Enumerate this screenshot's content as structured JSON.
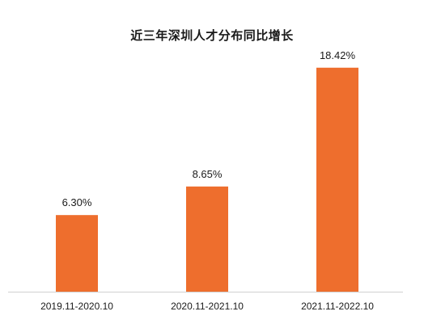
{
  "chart_data": {
    "type": "bar",
    "title": "近三年深圳人才分布同比增长",
    "categories": [
      "2019.11-2020.10",
      "2020.11-2021.10",
      "2021.11-2022.10"
    ],
    "values": [
      6.3,
      8.65,
      18.42
    ],
    "data_labels": [
      "6.30%",
      "8.65%",
      "18.42%"
    ],
    "unit": "%",
    "ylim": [
      0,
      20
    ],
    "grid": false,
    "legend": "none",
    "xlabel": "",
    "ylabel": ""
  },
  "colors": {
    "bar": "#ee6e2d",
    "axis": "#d0d0d0"
  }
}
